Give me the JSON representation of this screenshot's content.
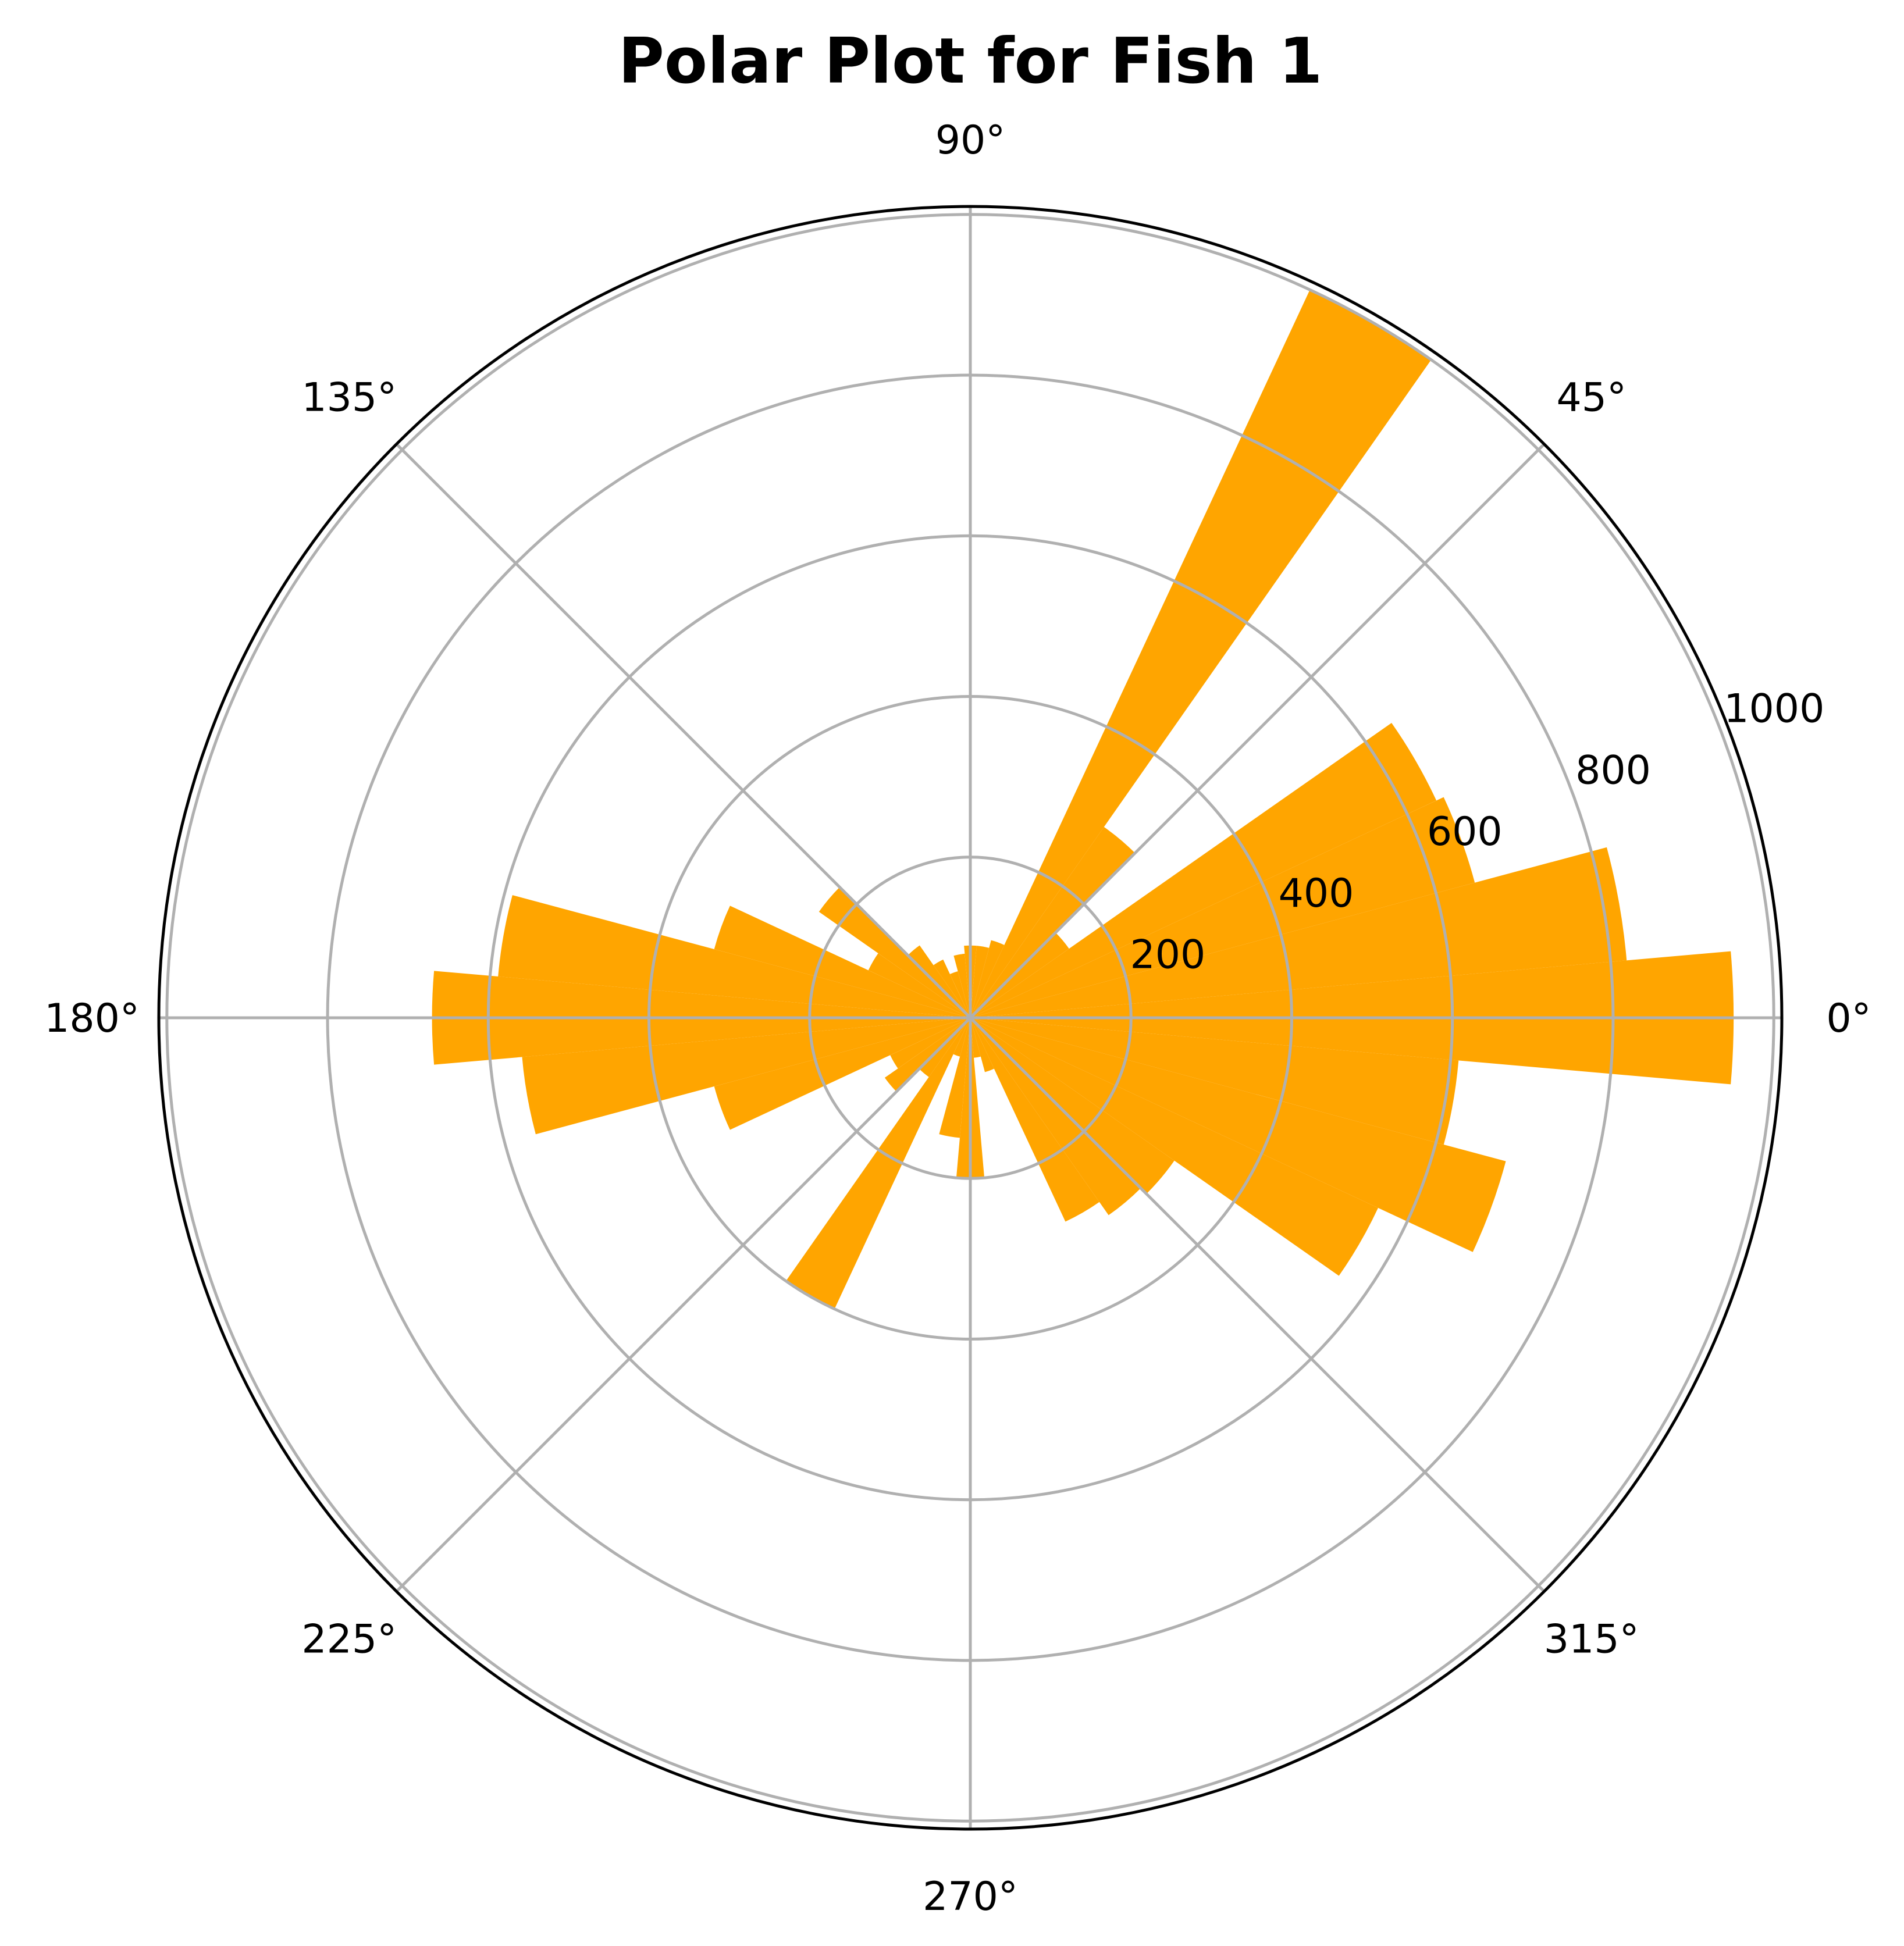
{
  "chart_data": {
    "type": "polar-bar",
    "title": "Polar Plot for Fish 1",
    "theta_unit": "degrees",
    "theta_ticks": [
      "0°",
      "45°",
      "90°",
      "135°",
      "180°",
      "225°",
      "270°",
      "315°"
    ],
    "theta_tick_values": [
      0,
      45,
      90,
      135,
      180,
      225,
      270,
      315
    ],
    "r_ticks": [
      "200",
      "400",
      "600",
      "800",
      "1000"
    ],
    "r_tick_values": [
      200,
      400,
      600,
      800,
      1000
    ],
    "rlim": [
      0,
      1010
    ],
    "grid": true,
    "bar_color": "#FFA500",
    "grid_color": "#b0b0b0",
    "bin_width_deg": 10,
    "bins": [
      {
        "theta": 0,
        "r": 950
      },
      {
        "theta": 10,
        "r": 820
      },
      {
        "theta": 20,
        "r": 650
      },
      {
        "theta": 30,
        "r": 640
      },
      {
        "theta": 40,
        "r": 150
      },
      {
        "theta": 50,
        "r": 290
      },
      {
        "theta": 60,
        "r": 1000
      },
      {
        "theta": 70,
        "r": 100
      },
      {
        "theta": 80,
        "r": 90
      },
      {
        "theta": 90,
        "r": 90
      },
      {
        "theta": 100,
        "r": 80
      },
      {
        "theta": 110,
        "r": 60
      },
      {
        "theta": 120,
        "r": 80
      },
      {
        "theta": 130,
        "r": 110
      },
      {
        "theta": 140,
        "r": 230
      },
      {
        "theta": 150,
        "r": 140
      },
      {
        "theta": 160,
        "r": 330
      },
      {
        "theta": 170,
        "r": 590
      },
      {
        "theta": 180,
        "r": 670
      },
      {
        "theta": 190,
        "r": 560
      },
      {
        "theta": 200,
        "r": 330
      },
      {
        "theta": 210,
        "r": 110
      },
      {
        "theta": 220,
        "r": 130
      },
      {
        "theta": 230,
        "r": 90
      },
      {
        "theta": 240,
        "r": 400
      },
      {
        "theta": 250,
        "r": 50
      },
      {
        "theta": 260,
        "r": 150
      },
      {
        "theta": 270,
        "r": 200
      },
      {
        "theta": 280,
        "r": 50
      },
      {
        "theta": 290,
        "r": 70
      },
      {
        "theta": 300,
        "r": 280
      },
      {
        "theta": 310,
        "r": 300
      },
      {
        "theta": 320,
        "r": 310
      },
      {
        "theta": 330,
        "r": 560
      },
      {
        "theta": 340,
        "r": 690
      },
      {
        "theta": 350,
        "r": 610
      }
    ]
  }
}
